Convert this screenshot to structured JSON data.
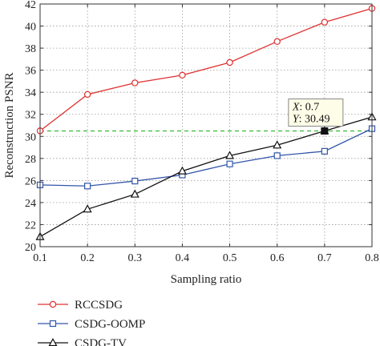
{
  "chart_data": {
    "type": "line",
    "title": "",
    "xlabel": "Sampling ratio",
    "ylabel": "Reconstruction PSNR",
    "xlim": [
      0.1,
      0.8
    ],
    "ylim": [
      20,
      42
    ],
    "xticks": [
      "0.1",
      "0.2",
      "0.3",
      "0.4",
      "0.5",
      "0.6",
      "0.7",
      "0.8"
    ],
    "yticks": [
      "20",
      "22",
      "24",
      "26",
      "28",
      "30",
      "32",
      "34",
      "36",
      "38",
      "40",
      "42"
    ],
    "x": [
      0.1,
      0.2,
      0.3,
      0.4,
      0.5,
      0.6,
      0.7,
      0.8
    ],
    "grid": true,
    "legend_position": "bottom",
    "series": [
      {
        "name": "RCCSDG",
        "color": "#e03030",
        "marker": "circle",
        "values": [
          30.5,
          33.8,
          34.85,
          35.55,
          36.7,
          38.6,
          40.35,
          41.6
        ]
      },
      {
        "name": "CSDG-OOMP",
        "color": "#3355aa",
        "marker": "square",
        "values": [
          25.6,
          25.5,
          25.95,
          26.5,
          27.5,
          28.25,
          28.65,
          30.7
        ]
      },
      {
        "name": "CSDG-TV",
        "color": "#111111",
        "marker": "triangle",
        "values": [
          20.9,
          23.4,
          24.75,
          26.85,
          28.25,
          29.2,
          30.49,
          31.75
        ]
      }
    ],
    "datatip": {
      "x": 0.7,
      "y": 30.49,
      "x_label": "X",
      "x_value": "0.7",
      "y_label": "Y",
      "y_value": "30.49",
      "line_color": "#33bb33"
    }
  }
}
